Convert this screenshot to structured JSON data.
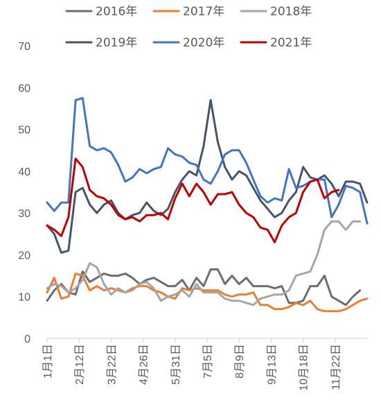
{
  "chart_data": {
    "type": "line",
    "title": "",
    "xlabel": "",
    "ylabel": "",
    "ylim": [
      0,
      70
    ],
    "yticks": [
      0,
      10,
      20,
      30,
      40,
      50,
      60,
      70
    ],
    "grid": false,
    "legend_position": "top",
    "xlim": [
      0,
      45
    ],
    "xticks": [
      {
        "label": "1月1日",
        "pos": 0
      },
      {
        "label": "2月12日",
        "pos": 4.5
      },
      {
        "label": "3月22日",
        "pos": 9
      },
      {
        "label": "4月26日",
        "pos": 13.5
      },
      {
        "label": "5月31日",
        "pos": 18
      },
      {
        "label": "7月5日",
        "pos": 22.5
      },
      {
        "label": "8月9日",
        "pos": 27
      },
      {
        "label": "9月13日",
        "pos": 31.5
      },
      {
        "label": "10月18日",
        "pos": 36
      },
      {
        "label": "11月22日",
        "pos": 40.5
      }
    ],
    "series": [
      {
        "name": "2016年",
        "color": "#6d6d6d",
        "x": [
          0,
          1,
          2,
          3,
          4,
          5,
          6,
          7,
          8,
          9,
          10,
          11,
          12,
          13,
          14,
          15,
          16,
          17,
          18,
          19,
          20,
          21,
          22,
          23,
          24,
          25,
          26,
          27,
          28,
          29,
          30,
          31,
          32,
          33,
          34,
          35,
          36,
          37,
          38,
          39,
          40,
          41,
          42,
          43,
          44,
          45
        ],
        "y": [
          9,
          11.5,
          13,
          11,
          10.5,
          16,
          13.5,
          14.5,
          15.5,
          15,
          15,
          15.5,
          14.5,
          13,
          14,
          14.5,
          13.5,
          12.5,
          12.5,
          14,
          11.5,
          14.5,
          12.5,
          16.5,
          16.5,
          13,
          15,
          13,
          14.5,
          12.5,
          12.5,
          12.5,
          12,
          12.5,
          8.5,
          8.5,
          9,
          12.5,
          12.5,
          15,
          10,
          9,
          8,
          10,
          11.5,
          null
        ]
      },
      {
        "name": "2017年",
        "color": "#ed7d31",
        "x": [
          0,
          1,
          2,
          3,
          4,
          5,
          6,
          7,
          8,
          9,
          10,
          11,
          12,
          13,
          14,
          15,
          16,
          17,
          18,
          19,
          20,
          21,
          22,
          23,
          24,
          25,
          26,
          27,
          28,
          29,
          30,
          31,
          32,
          33,
          34,
          35,
          36,
          37,
          38,
          39,
          40,
          41,
          42,
          43,
          44,
          45
        ],
        "y": [
          11,
          14.5,
          9.5,
          10,
          15.5,
          15,
          11.5,
          12.5,
          11.5,
          12,
          11.5,
          11,
          12,
          12.5,
          12.5,
          11.5,
          11,
          10,
          9.5,
          12,
          11.5,
          12,
          11.5,
          11.5,
          11.5,
          10.5,
          10,
          10.5,
          10.5,
          11,
          8,
          8,
          7,
          7,
          7.5,
          8.5,
          8,
          9,
          7,
          6.5,
          6.5,
          6.5,
          7,
          8,
          9,
          9.5
        ]
      },
      {
        "name": "2018年",
        "color": "#a5a5a5",
        "x": [
          0,
          1,
          2,
          3,
          4,
          5,
          6,
          7,
          8,
          9,
          10,
          11,
          12,
          13,
          14,
          15,
          16,
          17,
          18,
          19,
          20,
          21,
          22,
          23,
          24,
          25,
          26,
          27,
          28,
          29,
          30,
          31,
          32,
          33,
          34,
          35,
          36,
          37,
          38,
          39,
          40,
          41,
          42,
          43,
          44,
          45
        ],
        "y": [
          12,
          13,
          12.5,
          11,
          12,
          14,
          18,
          17,
          13,
          10.5,
          12,
          11,
          11.5,
          13,
          13.5,
          12,
          9,
          10,
          10.5,
          11.5,
          10,
          13,
          11,
          11,
          11,
          9.5,
          9,
          9,
          8.5,
          8,
          9.5,
          10,
          10.5,
          10.5,
          11.5,
          15,
          15.5,
          16,
          20,
          26,
          28,
          28,
          26,
          28,
          28,
          null
        ]
      },
      {
        "name": "2019年",
        "color": "#44546a",
        "x": [
          0,
          1,
          2,
          3,
          4,
          5,
          6,
          7,
          8,
          9,
          10,
          11,
          12,
          13,
          14,
          15,
          16,
          17,
          18,
          19,
          20,
          21,
          22,
          23,
          24,
          25,
          26,
          27,
          28,
          29,
          30,
          31,
          32,
          33,
          34,
          35,
          36,
          37,
          38,
          39,
          40,
          41,
          42,
          43,
          44,
          45
        ],
        "y": [
          27,
          25,
          20.5,
          21,
          35,
          36,
          32,
          30,
          32,
          33,
          30,
          28.5,
          29.5,
          30,
          32.5,
          30.5,
          29.5,
          31,
          35,
          38,
          40,
          39,
          46,
          57,
          47,
          41,
          38,
          40,
          39,
          36,
          33,
          31,
          29,
          30,
          33,
          35,
          41,
          38.5,
          38,
          39,
          37,
          34,
          37.5,
          37.5,
          37,
          32.5
        ]
      },
      {
        "name": "2020年",
        "color": "#4472c4",
        "x": [
          0,
          1,
          2,
          3,
          4,
          5,
          6,
          7,
          8,
          9,
          10,
          11,
          12,
          13,
          14,
          15,
          16,
          17,
          18,
          19,
          20,
          21,
          22,
          23,
          24,
          25,
          26,
          27,
          28,
          29,
          30,
          31,
          32,
          33,
          34,
          35,
          36,
          37,
          38,
          39,
          40,
          41,
          42,
          43,
          44,
          45
        ],
        "y": [
          32.5,
          30.5,
          32.5,
          32.5,
          57,
          57.5,
          46,
          45,
          45.5,
          44.5,
          41.5,
          37.5,
          38.5,
          40.5,
          39.5,
          40.5,
          41,
          45.5,
          44,
          43.5,
          42,
          41.5,
          38,
          37,
          40,
          44,
          45,
          45,
          42,
          38,
          34,
          32.5,
          33.5,
          33,
          40.5,
          36,
          36.5,
          37.5,
          38,
          38,
          29,
          32,
          36.5,
          36,
          35,
          27.5
        ]
      },
      {
        "name": "2021年",
        "color": "#c00000",
        "x": [
          0,
          1,
          2,
          3,
          4,
          5,
          6,
          7,
          8,
          9,
          10,
          11,
          12,
          13,
          14,
          15,
          16,
          17,
          18,
          19,
          20,
          21,
          22,
          23,
          24,
          25,
          26,
          27,
          28,
          29,
          30,
          31,
          32,
          33,
          34,
          35,
          36,
          37,
          38,
          39,
          40,
          41,
          42,
          43,
          44,
          45
        ],
        "y": [
          27,
          26,
          24.5,
          29,
          43,
          41,
          35.5,
          34,
          33.5,
          32,
          29.5,
          28.5,
          29,
          28,
          29.5,
          29.5,
          30,
          28.5,
          33.5,
          37,
          34,
          37,
          35,
          32,
          34.5,
          34.5,
          35,
          32,
          30,
          29,
          26.5,
          26,
          23,
          27,
          29,
          30,
          35,
          37.5,
          38,
          33.5,
          35,
          35.5,
          null,
          null,
          null,
          null
        ]
      }
    ]
  }
}
